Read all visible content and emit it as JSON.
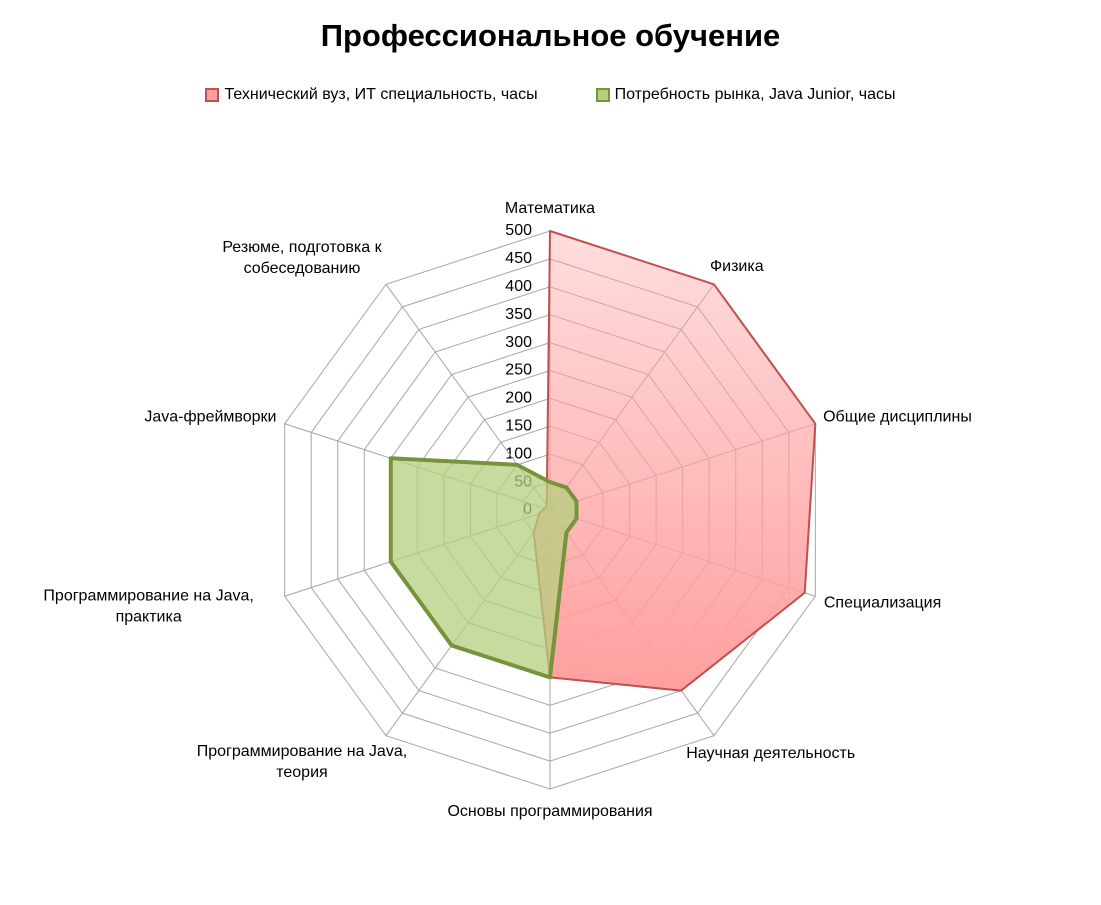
{
  "chart_data": {
    "type": "radar",
    "title": "Профессиональное обучение",
    "categories": [
      "Математика",
      "Физика",
      "Общие дисциплины",
      "Специализация",
      "Научная деятельность",
      "Основы программирования",
      "Программирование на Java, теория",
      "Программирование на Java, практика",
      "Java-фреймворки",
      "Резюме, подготовка к собеседованию"
    ],
    "series": [
      {
        "name": "Технический вуз, ИТ специальность, часы",
        "color": "#c0504d",
        "fill": "#ff9f9f",
        "values": [
          500,
          500,
          500,
          480,
          400,
          300,
          50,
          20,
          10,
          10
        ]
      },
      {
        "name": "Потребность рынка, Java Junior, часы",
        "color": "#77933c",
        "fill": "#b5cf7f",
        "values": [
          50,
          50,
          50,
          50,
          50,
          300,
          300,
          300,
          300,
          100
        ]
      }
    ],
    "ylim": [
      0,
      500
    ],
    "yticks": [
      0,
      50,
      100,
      150,
      200,
      250,
      300,
      350,
      400,
      450,
      500
    ],
    "grid": true,
    "legend": "top"
  }
}
